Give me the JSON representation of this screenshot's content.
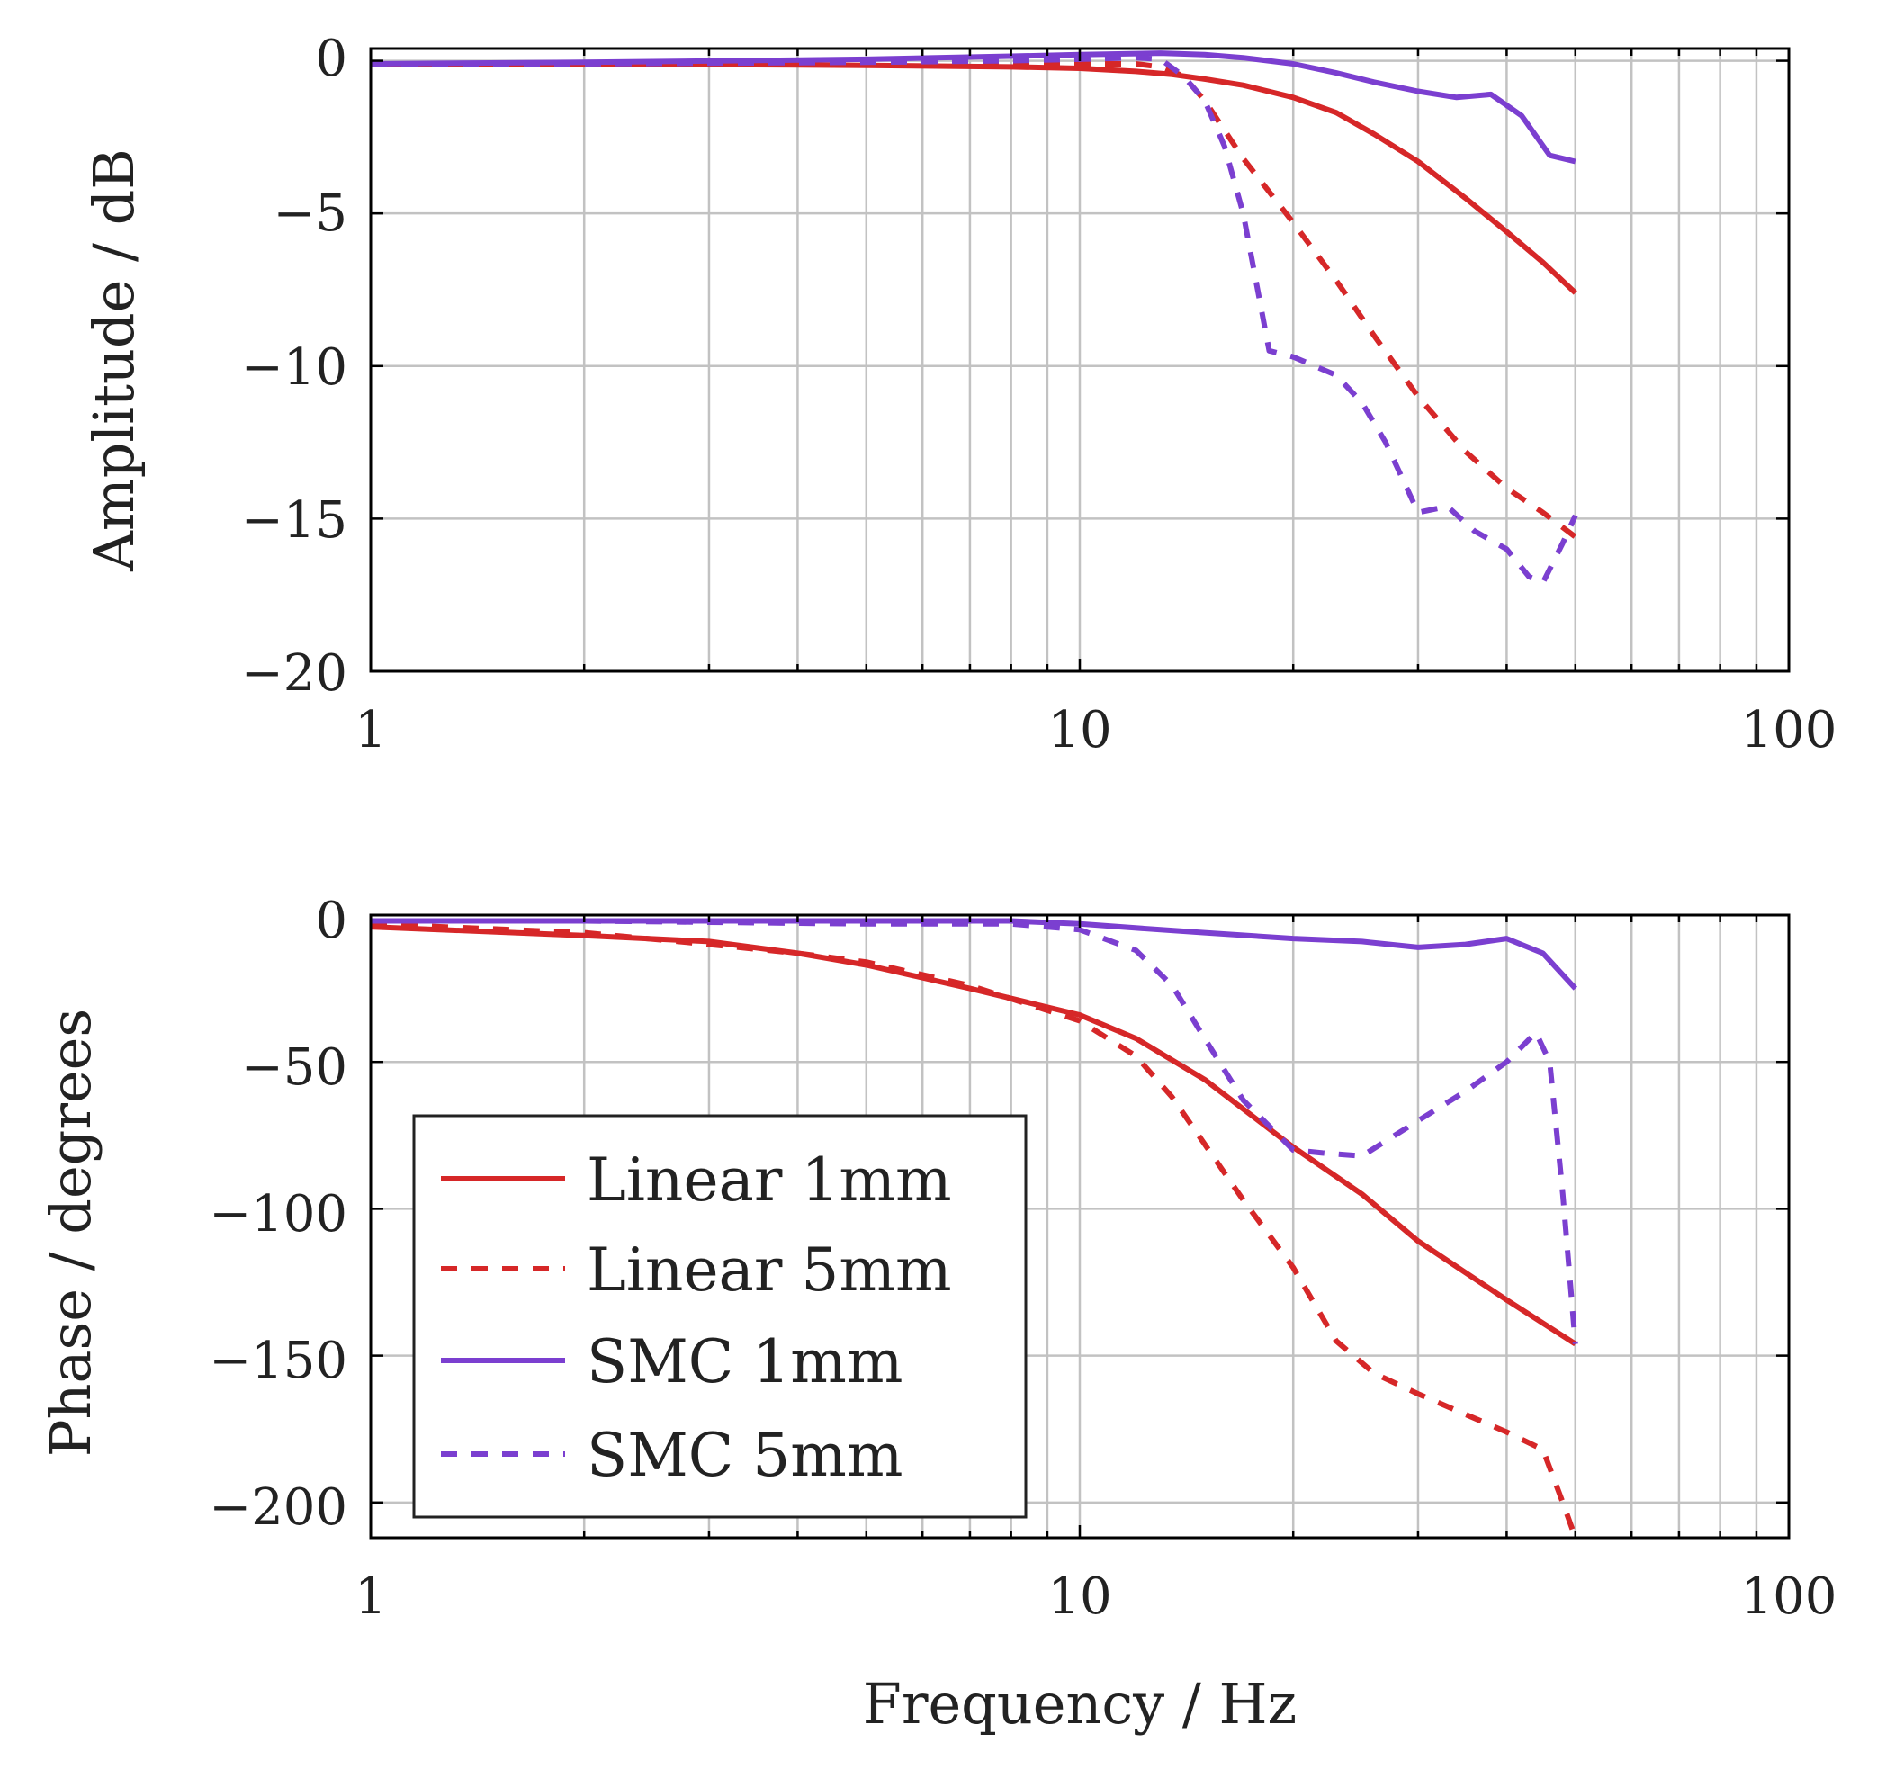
{
  "chart_data": [
    {
      "type": "line",
      "name": "amplitude",
      "xscale": "log",
      "xlim": [
        1,
        100
      ],
      "ylim": [
        -20,
        0.4
      ],
      "xlabel": "",
      "ylabel": "Amplitude / dB",
      "xticks": [
        1,
        10,
        100
      ],
      "xtick_labels": [
        "1",
        "10",
        "100"
      ],
      "yticks": [
        0,
        -5,
        -10,
        -15,
        -20
      ],
      "ytick_labels": [
        "0",
        "−5",
        "−10",
        "−15",
        "−20"
      ],
      "grid": true,
      "series": [
        {
          "name": "Linear 1mm",
          "color": "#d62728",
          "dash": false,
          "x": [
            1,
            2,
            5,
            8,
            10,
            12,
            13.5,
            15,
            17,
            20,
            23,
            26,
            30,
            35,
            40,
            45,
            50
          ],
          "y": [
            -0.1,
            -0.1,
            -0.15,
            -0.2,
            -0.25,
            -0.35,
            -0.45,
            -0.6,
            -0.8,
            -1.2,
            -1.7,
            -2.4,
            -3.3,
            -4.5,
            -5.6,
            -6.6,
            -7.6
          ]
        },
        {
          "name": "Linear 5mm",
          "color": "#d62728",
          "dash": true,
          "x": [
            1,
            2,
            5,
            8,
            10,
            12,
            13,
            14,
            15,
            17,
            20,
            23,
            26,
            30,
            35,
            40,
            45,
            50
          ],
          "y": [
            -0.1,
            -0.1,
            -0.1,
            -0.1,
            -0.1,
            -0.1,
            -0.2,
            -0.5,
            -1.3,
            -3.2,
            -5.3,
            -7.2,
            -9.0,
            -11.0,
            -12.8,
            -14.0,
            -14.8,
            -15.6
          ]
        },
        {
          "name": "SMC 1mm",
          "color": "#7b3fd0",
          "dash": false,
          "x": [
            1,
            2,
            5,
            8,
            10,
            13,
            15,
            17,
            20,
            23,
            26,
            30,
            34,
            38,
            42,
            46,
            50
          ],
          "y": [
            -0.1,
            -0.05,
            0.05,
            0.15,
            0.2,
            0.25,
            0.2,
            0.1,
            -0.1,
            -0.4,
            -0.7,
            -1.0,
            -1.2,
            -1.1,
            -1.8,
            -3.1,
            -3.3
          ]
        },
        {
          "name": "SMC 5mm",
          "color": "#7b3fd0",
          "dash": true,
          "x": [
            1,
            2,
            5,
            8,
            10,
            12,
            13,
            14,
            15,
            16,
            17,
            18.5,
            20,
            23,
            25,
            27,
            30,
            33,
            36,
            40,
            43,
            45,
            48,
            50
          ],
          "y": [
            -0.1,
            -0.1,
            -0.05,
            0,
            0.05,
            0.1,
            0.05,
            -0.5,
            -1.3,
            -2.8,
            -5.0,
            -9.5,
            -9.7,
            -10.3,
            -11.2,
            -12.5,
            -14.8,
            -14.6,
            -15.4,
            -16.0,
            -16.9,
            -17.1,
            -15.8,
            -14.9
          ]
        }
      ]
    },
    {
      "type": "line",
      "name": "phase",
      "xscale": "log",
      "xlim": [
        1,
        100
      ],
      "ylim": [
        -212,
        0
      ],
      "xlabel": "Frequency / Hz",
      "ylabel": "Phase / degrees",
      "xticks": [
        1,
        10,
        100
      ],
      "xtick_labels": [
        "1",
        "10",
        "100"
      ],
      "yticks": [
        0,
        -50,
        -100,
        -150,
        -200
      ],
      "ytick_labels": [
        "0",
        "−50",
        "−100",
        "−150",
        "−200"
      ],
      "grid": true,
      "legend": {
        "position": "bottom-left",
        "entries": [
          "Linear 1mm",
          "Linear 5mm",
          "SMC 1mm",
          "SMC 5mm"
        ]
      },
      "series": [
        {
          "name": "Linear 1mm",
          "color": "#d62728",
          "dash": false,
          "x": [
            1,
            2,
            3,
            4,
            5,
            7,
            10,
            12,
            15,
            20,
            25,
            30,
            40,
            50
          ],
          "y": [
            -4,
            -7,
            -9,
            -13,
            -17,
            -25,
            -34,
            -42,
            -56,
            -79,
            -95,
            -111,
            -131,
            -146
          ]
        },
        {
          "name": "Linear 5mm",
          "color": "#d62728",
          "dash": true,
          "x": [
            1,
            2,
            3,
            4,
            5,
            7,
            10,
            12,
            13.5,
            15,
            17,
            20,
            23,
            26,
            30,
            35,
            40,
            45,
            48,
            50
          ],
          "y": [
            -3,
            -6,
            -10,
            -13,
            -16,
            -24,
            -36,
            -48,
            -62,
            -78,
            -97,
            -120,
            -145,
            -156,
            -163,
            -170,
            -176,
            -182,
            -200,
            -212
          ]
        },
        {
          "name": "SMC 1mm",
          "color": "#7b3fd0",
          "dash": false,
          "x": [
            1,
            2,
            5,
            8,
            10,
            13,
            15,
            20,
            25,
            30,
            35,
            40,
            45,
            50
          ],
          "y": [
            -2,
            -2,
            -2,
            -2,
            -3,
            -5,
            -6,
            -8,
            -9,
            -11,
            -10,
            -8,
            -13,
            -25
          ]
        },
        {
          "name": "SMC 5mm",
          "color": "#7b3fd0",
          "dash": true,
          "x": [
            1,
            2,
            5,
            8,
            10,
            12,
            13.5,
            15,
            17,
            20,
            22,
            25,
            30,
            35,
            40,
            44,
            46,
            48,
            50
          ],
          "y": [
            -2,
            -2,
            -3,
            -3,
            -5,
            -12,
            -24,
            -42,
            -63,
            -80,
            -81,
            -82,
            -70,
            -60,
            -50,
            -40,
            -50,
            -95,
            -146
          ]
        }
      ]
    }
  ]
}
